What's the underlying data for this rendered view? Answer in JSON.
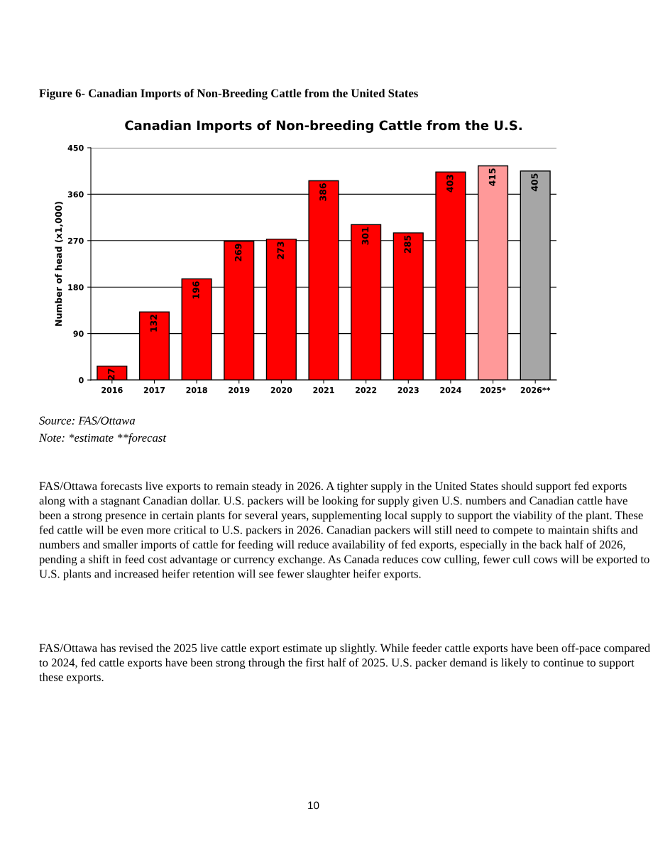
{
  "chart_data": {
    "type": "bar",
    "title": "Canadian Imports of Non-breeding Cattle from the U.S.",
    "ylabel": "Number of head (x1,000)",
    "categories": [
      "2016",
      "2017",
      "2018",
      "2019",
      "2020",
      "2021",
      "2022",
      "2023",
      "2024",
      "2025*",
      "2026**"
    ],
    "values": [
      27,
      132,
      196,
      269,
      273,
      386,
      301,
      285,
      403,
      415,
      405
    ],
    "colors": [
      "#ff0000",
      "#ff0000",
      "#ff0000",
      "#ff0000",
      "#ff0000",
      "#ff0000",
      "#ff0000",
      "#ff0000",
      "#ff0000",
      "#ff9999",
      "#a6a6a6"
    ],
    "ylim": [
      0,
      450
    ],
    "yticks": [
      0,
      90,
      180,
      270,
      360,
      450
    ],
    "grid": "y",
    "data_labels": true,
    "legend": false,
    "annotations": [
      "Figure 6- Canadian Imports of Non-Breeding Cattle from the United States",
      "Source: FAS/Ottawa",
      "Note: *estimate **forecast",
      "FAS/Ottawa forecasts live exports to remain steady in 2026. A tighter supply in the United States should support fed exports along with a stagnant Canadian dollar. U.S. packers will be looking for supply given U.S. numbers and Canadian cattle have been a strong presence in certain plants for several years, supplementing local supply to support the viability of the plant. These fed cattle will be even more critical to U.S. packers in 2026. Canadian packers will still need to compete to maintain shifts and numbers and smaller imports of cattle for feeding will reduce availability of fed exports, especially in the back half of 2026, pending a shift in feed cost advantage or currency exchange. As Canada reduces cow culling, fewer cull cows will be exported to U.S. plants and increased heifer retention will see fewer slaughter heifer exports.",
      "FAS/Ottawa has revised the 2025 live cattle export estimate up slightly. While feeder cattle exports have been off-pace compared to 2024, fed cattle exports have been strong through the first half of 2025. U.S. packer demand is likely to continue to support these exports.",
      "10"
    ]
  }
}
